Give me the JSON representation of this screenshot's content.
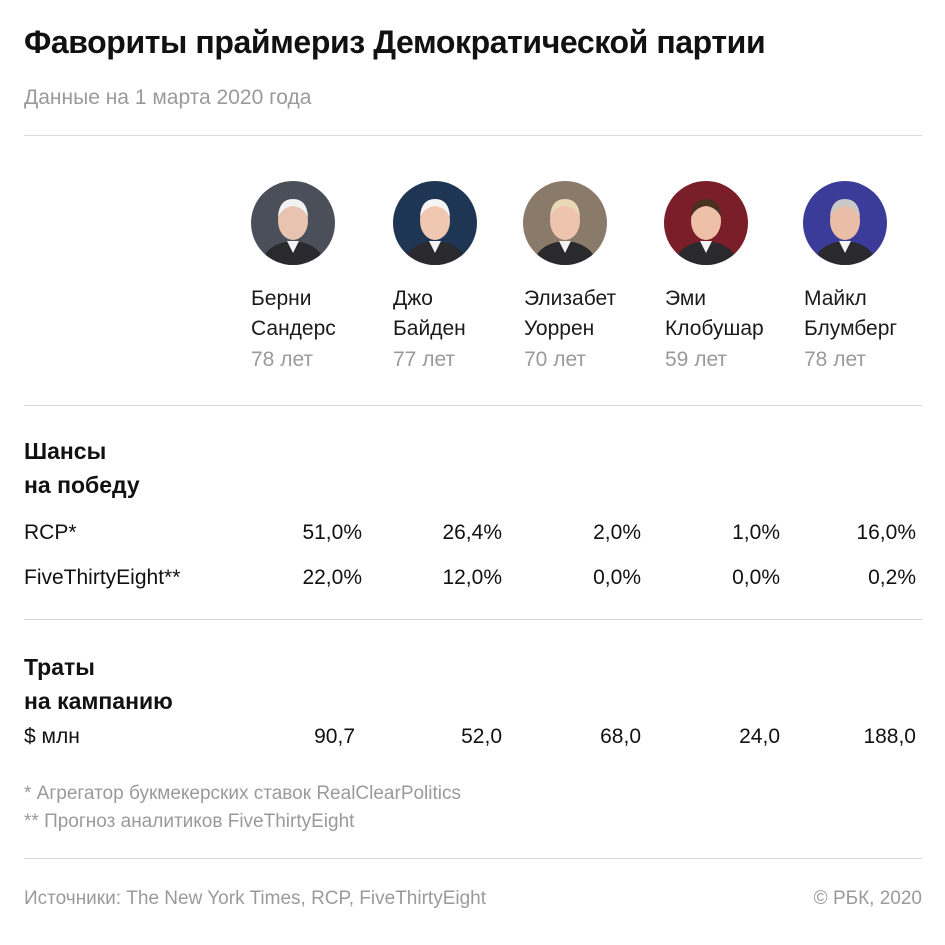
{
  "title": "Фавориты праймериз Демократической партии",
  "subtitle": "Данные на 1 марта 2020 года",
  "candidates": [
    {
      "first": "Берни",
      "last": "Сандерс",
      "age": "78 лет",
      "photo_bg": "#4a4f5a",
      "skin": "#e8c4b0",
      "hair": "#f2f2f2"
    },
    {
      "first": "Джо",
      "last": "Байден",
      "age": "77 лет",
      "photo_bg": "#1f3554",
      "skin": "#f0c7b1",
      "hair": "#f5f5f5"
    },
    {
      "first": "Элизабет",
      "last": "Уоррен",
      "age": "70 лет",
      "photo_bg": "#8a7a6a",
      "skin": "#eec4ae",
      "hair": "#e9d8b6"
    },
    {
      "first": "Эми",
      "last": "Клобушар",
      "age": "59 лет",
      "photo_bg": "#7a1e2a",
      "skin": "#eec0a8",
      "hair": "#4a3020"
    },
    {
      "first": "Майкл",
      "last": "Блумберг",
      "age": "78 лет",
      "photo_bg": "#3b3b9a",
      "skin": "#e9bda6",
      "hair": "#c9c9c9"
    }
  ],
  "chances": {
    "heading_line1": "Шансы",
    "heading_line2": "на победу",
    "rows": [
      {
        "label": "RCP*",
        "values": [
          "51,0%",
          "26,4%",
          "2,0%",
          "1,0%",
          "16,0%"
        ]
      },
      {
        "label": "FiveThirtyEight**",
        "values": [
          "22,0%",
          "12,0%",
          "0,0%",
          "0,0%",
          "0,2%"
        ]
      }
    ]
  },
  "spending": {
    "heading_line1": "Траты",
    "heading_line2": "на кампанию",
    "row": {
      "label": "$ млн",
      "values": [
        "90,7",
        "52,0",
        "68,0",
        "24,0",
        "188,0"
      ]
    }
  },
  "notes": [
    "* Агрегатор букмекерских ставок RealClearPolitics",
    "** Прогноз аналитиков FiveThirtyEight"
  ],
  "footer": {
    "sources": "Источники: The New York Times, RCP, FiveThirtyEight",
    "copyright": "© РБК, 2020"
  }
}
